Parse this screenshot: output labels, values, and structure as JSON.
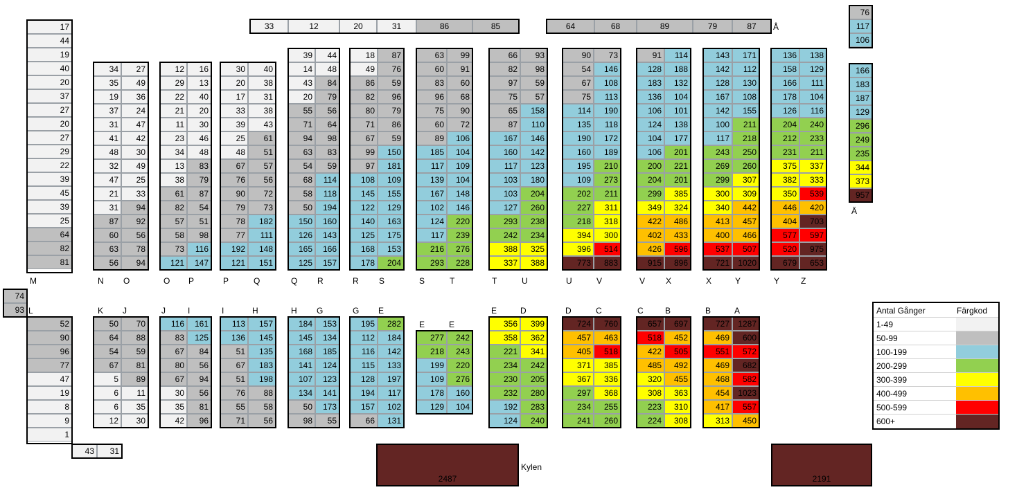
{
  "colors": {
    "c0": "#f2f2f2",
    "c1": "#bfbfbf",
    "c2": "#92cddc",
    "c3": "#92d050",
    "c4": "#ffff00",
    "c5": "#ffc000",
    "c6": "#ff0000",
    "c7": "#632523"
  },
  "top_row_left": [
    "33",
    "12",
    "20",
    "31",
    "86",
    "85"
  ],
  "top_row_right": [
    "64",
    "68",
    "89",
    "79",
    "87"
  ],
  "top_right_label": "Å",
  "col_m": [
    "17",
    "44",
    "19",
    "40",
    "20",
    "37",
    "27",
    "20",
    "27",
    "29",
    "22",
    "39",
    "45",
    "39",
    "25",
    "64",
    "82",
    "81"
  ],
  "col_aa": [
    "76",
    "117",
    "106"
  ],
  "col_ae": [
    "166",
    "183",
    "187",
    "129",
    "296",
    "249",
    "235",
    "344",
    "373",
    "957"
  ],
  "label_ae": "Ä",
  "upper_pairs": [
    [
      [
        "34",
        "27"
      ],
      [
        "35",
        "49"
      ],
      [
        "19",
        "36"
      ],
      [
        "37",
        "24"
      ],
      [
        "31",
        "47"
      ],
      [
        "41",
        "42"
      ],
      [
        "48",
        "30"
      ],
      [
        "32",
        "49"
      ],
      [
        "47",
        "25"
      ],
      [
        "21",
        "33"
      ],
      [
        "31",
        "94"
      ],
      [
        "87",
        "92"
      ],
      [
        "60",
        "56"
      ],
      [
        "63",
        "78"
      ],
      [
        "56",
        "94"
      ]
    ],
    [
      [
        "12",
        "16"
      ],
      [
        "29",
        "13"
      ],
      [
        "22",
        "40"
      ],
      [
        "21",
        "20"
      ],
      [
        "11",
        "30"
      ],
      [
        "23",
        "46"
      ],
      [
        "34",
        "48"
      ],
      [
        "13",
        "83"
      ],
      [
        "38",
        "79"
      ],
      [
        "61",
        "87"
      ],
      [
        "82",
        "54"
      ],
      [
        "57",
        "51"
      ],
      [
        "58",
        "98"
      ],
      [
        "73",
        "116"
      ],
      [
        "121",
        "147"
      ]
    ],
    [
      [
        "30",
        "40"
      ],
      [
        "20",
        "38"
      ],
      [
        "17",
        "31"
      ],
      [
        "33",
        "38"
      ],
      [
        "39",
        "43"
      ],
      [
        "25",
        "61"
      ],
      [
        "48",
        "51"
      ],
      [
        "67",
        "57"
      ],
      [
        "76",
        "56"
      ],
      [
        "90",
        "72"
      ],
      [
        "79",
        "73"
      ],
      [
        "78",
        "182"
      ],
      [
        "77",
        "111"
      ],
      [
        "192",
        "148"
      ],
      [
        "121",
        "151"
      ]
    ],
    [
      [
        "39",
        "44"
      ],
      [
        "14",
        "48"
      ],
      [
        "43",
        "84"
      ],
      [
        "20",
        "79"
      ],
      [
        "55",
        "56"
      ],
      [
        "71",
        "64"
      ],
      [
        "94",
        "98"
      ],
      [
        "63",
        "83"
      ],
      [
        "54",
        "59"
      ],
      [
        "68",
        "114"
      ],
      [
        "58",
        "118"
      ],
      [
        "50",
        "194"
      ],
      [
        "150",
        "160"
      ],
      [
        "126",
        "143"
      ],
      [
        "165",
        "166"
      ],
      [
        "125",
        "157"
      ]
    ],
    [
      [
        "18",
        "87"
      ],
      [
        "49",
        "76"
      ],
      [
        "86",
        "59"
      ],
      [
        "82",
        "96"
      ],
      [
        "80",
        "79"
      ],
      [
        "71",
        "86"
      ],
      [
        "67",
        "59"
      ],
      [
        "99",
        "150"
      ],
      [
        "97",
        "181"
      ],
      [
        "108",
        "109"
      ],
      [
        "145",
        "155"
      ],
      [
        "122",
        "129"
      ],
      [
        "140",
        "163"
      ],
      [
        "125",
        "175"
      ],
      [
        "168",
        "153"
      ],
      [
        "178",
        "204"
      ]
    ],
    [
      [
        "63",
        "99"
      ],
      [
        "60",
        "91"
      ],
      [
        "83",
        "60"
      ],
      [
        "96",
        "68"
      ],
      [
        "75",
        "90"
      ],
      [
        "60",
        "72"
      ],
      [
        "89",
        "106"
      ],
      [
        "185",
        "104"
      ],
      [
        "117",
        "109"
      ],
      [
        "139",
        "104"
      ],
      [
        "167",
        "148"
      ],
      [
        "102",
        "146"
      ],
      [
        "124",
        "220"
      ],
      [
        "117",
        "239"
      ],
      [
        "216",
        "276"
      ],
      [
        "293",
        "228"
      ]
    ],
    [
      [
        "66",
        "93"
      ],
      [
        "82",
        "98"
      ],
      [
        "97",
        "59"
      ],
      [
        "75",
        "57"
      ],
      [
        "65",
        "158"
      ],
      [
        "87",
        "110"
      ],
      [
        "167",
        "146"
      ],
      [
        "160",
        "142"
      ],
      [
        "117",
        "123"
      ],
      [
        "103",
        "180"
      ],
      [
        "103",
        "204"
      ],
      [
        "127",
        "260"
      ],
      [
        "293",
        "238"
      ],
      [
        "242",
        "234"
      ],
      [
        "388",
        "325"
      ],
      [
        "337",
        "388"
      ]
    ],
    [
      [
        "90",
        "73"
      ],
      [
        "54",
        "146"
      ],
      [
        "67",
        "108"
      ],
      [
        "75",
        "113"
      ],
      [
        "114",
        "190"
      ],
      [
        "135",
        "118"
      ],
      [
        "190",
        "172"
      ],
      [
        "160",
        "189"
      ],
      [
        "195",
        "210"
      ],
      [
        "109",
        "273"
      ],
      [
        "202",
        "211"
      ],
      [
        "227",
        "311"
      ],
      [
        "218",
        "318"
      ],
      [
        "394",
        "300"
      ],
      [
        "396",
        "514"
      ],
      [
        "773",
        "883"
      ]
    ],
    [
      [
        "91",
        "114"
      ],
      [
        "128",
        "188"
      ],
      [
        "183",
        "132"
      ],
      [
        "136",
        "104"
      ],
      [
        "106",
        "101"
      ],
      [
        "124",
        "138"
      ],
      [
        "104",
        "177"
      ],
      [
        "106",
        "201"
      ],
      [
        "200",
        "221"
      ],
      [
        "204",
        "201"
      ],
      [
        "299",
        "385"
      ],
      [
        "349",
        "324"
      ],
      [
        "422",
        "486"
      ],
      [
        "402",
        "433"
      ],
      [
        "426",
        "596"
      ],
      [
        "915",
        "896"
      ]
    ],
    [
      [
        "143",
        "171"
      ],
      [
        "142",
        "112"
      ],
      [
        "128",
        "130"
      ],
      [
        "167",
        "108"
      ],
      [
        "142",
        "155"
      ],
      [
        "100",
        "211"
      ],
      [
        "117",
        "218"
      ],
      [
        "243",
        "250"
      ],
      [
        "269",
        "260"
      ],
      [
        "299",
        "307"
      ],
      [
        "300",
        "309"
      ],
      [
        "340",
        "442"
      ],
      [
        "413",
        "457"
      ],
      [
        "400",
        "466"
      ],
      [
        "537",
        "507"
      ],
      [
        "721",
        "1020"
      ]
    ],
    [
      [
        "136",
        "138"
      ],
      [
        "158",
        "129"
      ],
      [
        "166",
        "111"
      ],
      [
        "178",
        "104"
      ],
      [
        "126",
        "116"
      ],
      [
        "204",
        "240"
      ],
      [
        "212",
        "233"
      ],
      [
        "231",
        "211"
      ],
      [
        "375",
        "337"
      ],
      [
        "382",
        "333"
      ],
      [
        "350",
        "539"
      ],
      [
        "446",
        "420"
      ],
      [
        "404",
        "703"
      ],
      [
        "577",
        "597"
      ],
      [
        "520",
        "975"
      ],
      [
        "679",
        "653"
      ]
    ]
  ],
  "upper_labels": [
    "M",
    "N",
    "O",
    "O",
    "P",
    "P",
    "Q",
    "Q",
    "R",
    "R",
    "S",
    "S",
    "T",
    "T",
    "U",
    "U",
    "V",
    "V",
    "X",
    "X",
    "Y",
    "Y",
    "Z"
  ],
  "lower_labels": [
    "L",
    "K",
    "J",
    "J",
    "I",
    "I",
    "H",
    "H",
    "G",
    "G",
    "E",
    "E",
    "E",
    "E",
    "D",
    "D",
    "C",
    "C",
    "B",
    "B",
    "A"
  ],
  "side_left": [
    "74",
    "93"
  ],
  "col_l": [
    "52",
    "90",
    "96",
    "77",
    "47",
    "19",
    "8",
    "9",
    "1"
  ],
  "col_l_foot": [
    "43",
    "31"
  ],
  "lower_pairs": [
    [
      [
        "50",
        "70"
      ],
      [
        "64",
        "88"
      ],
      [
        "54",
        "59"
      ],
      [
        "67",
        "81"
      ],
      [
        "5",
        "89"
      ],
      [
        "6",
        "11"
      ],
      [
        "6",
        "35"
      ],
      [
        "12",
        "30"
      ]
    ],
    [
      [
        "116",
        "161"
      ],
      [
        "83",
        "125"
      ],
      [
        "67",
        "84"
      ],
      [
        "80",
        "56"
      ],
      [
        "67",
        "94"
      ],
      [
        "30",
        "56"
      ],
      [
        "35",
        "81"
      ],
      [
        "42",
        "96"
      ]
    ],
    [
      [
        "113",
        "157"
      ],
      [
        "136",
        "145"
      ],
      [
        "51",
        "135"
      ],
      [
        "67",
        "183"
      ],
      [
        "51",
        "198"
      ],
      [
        "76",
        "88"
      ],
      [
        "55",
        "58"
      ],
      [
        "71",
        "56"
      ]
    ],
    [
      [
        "184",
        "153"
      ],
      [
        "145",
        "134"
      ],
      [
        "168",
        "185"
      ],
      [
        "141",
        "124"
      ],
      [
        "107",
        "123"
      ],
      [
        "134",
        "141"
      ],
      [
        "50",
        "173"
      ],
      [
        "98",
        "55"
      ]
    ],
    [
      [
        "195",
        "282"
      ],
      [
        "112",
        "184"
      ],
      [
        "116",
        "142"
      ],
      [
        "115",
        "133"
      ],
      [
        "128",
        "197"
      ],
      [
        "194",
        "117"
      ],
      [
        "157",
        "102"
      ],
      [
        "66",
        "131"
      ]
    ],
    [
      [
        "277",
        "242"
      ],
      [
        "218",
        "243"
      ],
      [
        "199",
        "220"
      ],
      [
        "109",
        "276"
      ],
      [
        "178",
        "160"
      ],
      [
        "129",
        "104"
      ]
    ],
    [
      [
        "356",
        "399"
      ],
      [
        "358",
        "362"
      ],
      [
        "221",
        "341"
      ],
      [
        "234",
        "242"
      ],
      [
        "230",
        "205"
      ],
      [
        "232",
        "280"
      ],
      [
        "192",
        "283"
      ],
      [
        "124",
        "240"
      ]
    ],
    [
      [
        "724",
        "760"
      ],
      [
        "457",
        "463"
      ],
      [
        "405",
        "518"
      ],
      [
        "371",
        "385"
      ],
      [
        "367",
        "336"
      ],
      [
        "297",
        "368"
      ],
      [
        "234",
        "255"
      ],
      [
        "241",
        "260"
      ]
    ],
    [
      [
        "657",
        "697"
      ],
      [
        "518",
        "452"
      ],
      [
        "422",
        "505"
      ],
      [
        "485",
        "492"
      ],
      [
        "320",
        "455"
      ],
      [
        "308",
        "363"
      ],
      [
        "223",
        "310"
      ],
      [
        "224",
        "308"
      ]
    ],
    [
      [
        "727",
        "1287"
      ],
      [
        "469",
        "600"
      ],
      [
        "551",
        "572"
      ],
      [
        "469",
        "682"
      ],
      [
        "468",
        "582"
      ],
      [
        "454",
        "1023"
      ],
      [
        "417",
        "557"
      ],
      [
        "313",
        "450"
      ]
    ]
  ],
  "kylen": {
    "label": "Kylen",
    "value": "2487"
  },
  "block_right": {
    "value": "2191"
  },
  "legend": {
    "header_left": "Antal Gånger",
    "header_right": "Färgkod",
    "rows": [
      {
        "range": "1-49",
        "color": "#f2f2f2"
      },
      {
        "range": "50-99",
        "color": "#bfbfbf"
      },
      {
        "range": "100-199",
        "color": "#92cddc"
      },
      {
        "range": "200-299",
        "color": "#92d050"
      },
      {
        "range": "300-399",
        "color": "#ffff00"
      },
      {
        "range": "400-499",
        "color": "#ffc000"
      },
      {
        "range": "500-599",
        "color": "#ff0000"
      },
      {
        "range": "600+",
        "color": "#632523"
      }
    ]
  }
}
